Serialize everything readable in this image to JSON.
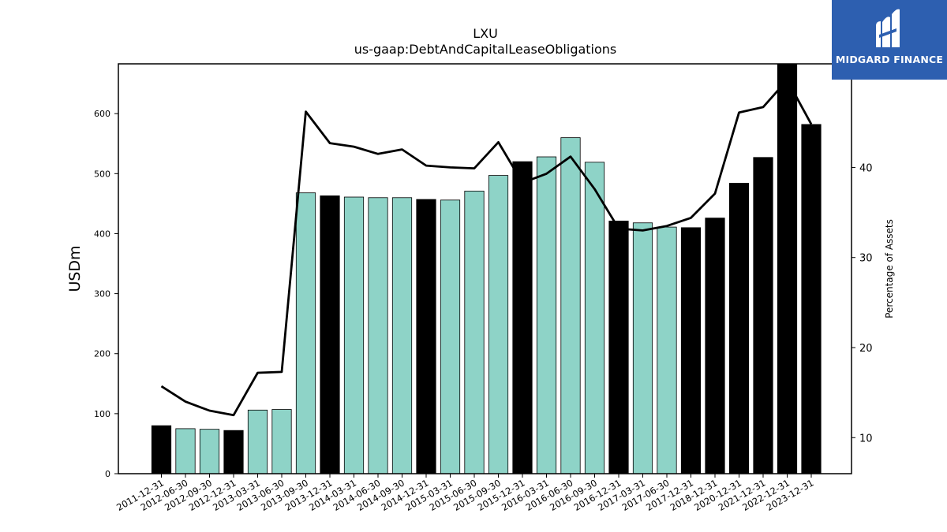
{
  "chart_data": {
    "type": "bar",
    "title": "LXU",
    "subtitle": "us-gaap:DebtAndCapitalLeaseObligations",
    "ylabel": "USDm",
    "y2label": "Percentage of Assets",
    "ylim": [
      0,
      683
    ],
    "y2lim": [
      6,
      51.5
    ],
    "yticks": [
      0,
      100,
      200,
      300,
      400,
      500,
      600
    ],
    "y2ticks": [
      10,
      20,
      30,
      40
    ],
    "grid": false,
    "colors": {
      "annual": "#000000",
      "quarterly": "#8ed3c7",
      "line": "#000000"
    },
    "categories": [
      "2011-12-31",
      "2012-06-30",
      "2012-09-30",
      "2012-12-31",
      "2013-03-31",
      "2013-06-30",
      "2013-09-30",
      "2013-12-31",
      "2014-03-31",
      "2014-06-30",
      "2014-09-30",
      "2014-12-31",
      "2015-03-31",
      "2015-06-30",
      "2015-09-30",
      "2015-12-31",
      "2016-03-31",
      "2016-06-30",
      "2016-09-30",
      "2016-12-31",
      "2017-03-31",
      "2017-06-30",
      "2017-12-31",
      "2018-12-31",
      "2020-12-31",
      "2021-12-31",
      "2022-12-31",
      "2023-12-31"
    ],
    "series": [
      {
        "kind": "bar",
        "values": [
          80,
          75,
          74,
          72,
          106,
          107,
          468,
          463,
          461,
          460,
          460,
          457,
          456,
          471,
          497,
          520,
          528,
          560,
          519,
          421,
          418,
          411,
          410,
          426,
          484,
          527,
          683,
          582
        ],
        "annual": [
          true,
          false,
          false,
          true,
          false,
          false,
          false,
          true,
          false,
          false,
          false,
          true,
          false,
          false,
          false,
          true,
          false,
          false,
          false,
          true,
          false,
          false,
          true,
          true,
          true,
          true,
          true,
          true
        ]
      },
      {
        "kind": "line",
        "axis": "right",
        "values": [
          15.7,
          14.0,
          13.0,
          12.5,
          17.2,
          17.3,
          46.2,
          42.7,
          42.3,
          41.5,
          42.0,
          40.2,
          40.0,
          39.9,
          42.8,
          38.3,
          39.3,
          41.2,
          37.6,
          33.2,
          33.0,
          33.5,
          34.4,
          37.1,
          46.1,
          46.7,
          49.7,
          44.8
        ]
      }
    ]
  },
  "logo": {
    "text": "MIDGARD FINANCE",
    "color": "#2d5fb0",
    "icon": "midgard-logo-icon"
  }
}
